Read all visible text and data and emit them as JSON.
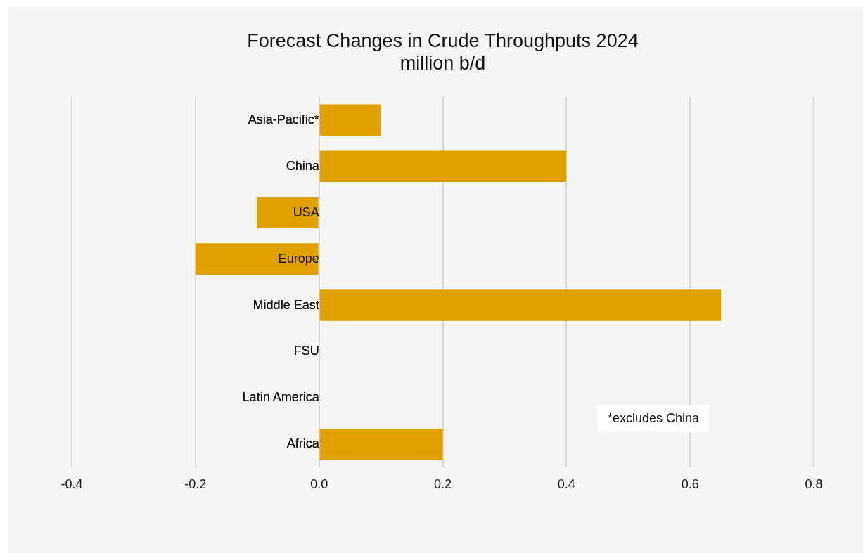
{
  "chart_data": {
    "type": "bar",
    "orientation": "horizontal",
    "title": "Forecast Changes in Crude Throughputs 2024",
    "subtitle": "million b/d",
    "categories": [
      "Asia-Pacific*",
      "China",
      "USA",
      "Europe",
      "Middle East",
      "FSU",
      "Latin America",
      "Africa"
    ],
    "values": [
      0.1,
      0.4,
      -0.1,
      -0.2,
      0.65,
      0,
      0,
      0.2
    ],
    "color": "#e0a100",
    "xlim": [
      -0.4,
      0.8
    ],
    "xticks": [
      -0.4,
      -0.2,
      {
        "value": 0,
        "label": "0.0"
      },
      0.2,
      0.4,
      0.6,
      0.8
    ],
    "grid": "x",
    "legend": false,
    "annotations": [
      "*excludes China"
    ]
  }
}
